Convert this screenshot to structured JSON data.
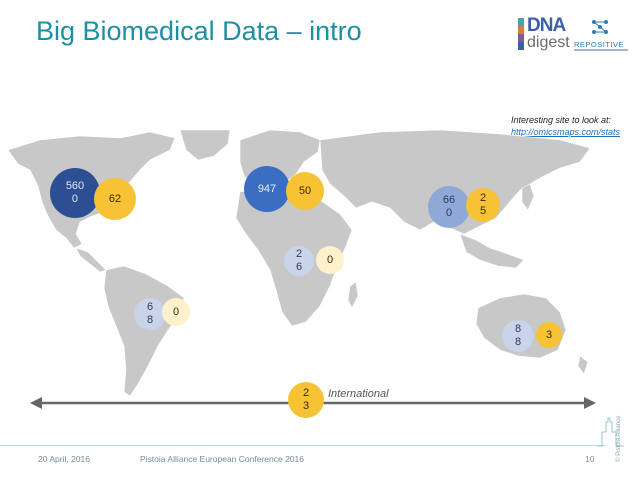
{
  "slide": {
    "title": "Big Biomedical Data – intro",
    "note_line1": "Interesting site to look at:",
    "note_link": "http://omicsmaps.com/stats"
  },
  "logos": {
    "dna_line1": "DNA",
    "dna_line2": "digest",
    "repositive": "REPOSITIVE"
  },
  "circles": {
    "north_america_sequencers": "560\n0",
    "north_america_other": "62",
    "europe_sequencers": "947",
    "europe_other": "50",
    "asia_sequencers": "66\n0",
    "asia_other": "2\n5",
    "africa_sequencers": "2\n6",
    "africa_other": "0",
    "south_america_sequencers": "6\n8",
    "south_america_other": "0",
    "australia_sequencers": "8\n8",
    "australia_other": "3",
    "international_value": "2\n3"
  },
  "international_label": "International",
  "footer": {
    "date": "20 April, 2016",
    "conference": "Pistoia Alliance European Conference 2016",
    "page": "10",
    "copyright": "© Pistoia Alliance"
  },
  "colors": {
    "title": "#1f8fa3",
    "map_land": "#c8c8c8",
    "circle_dark": "#2c4f94",
    "circle_orange": "#f7c234"
  }
}
